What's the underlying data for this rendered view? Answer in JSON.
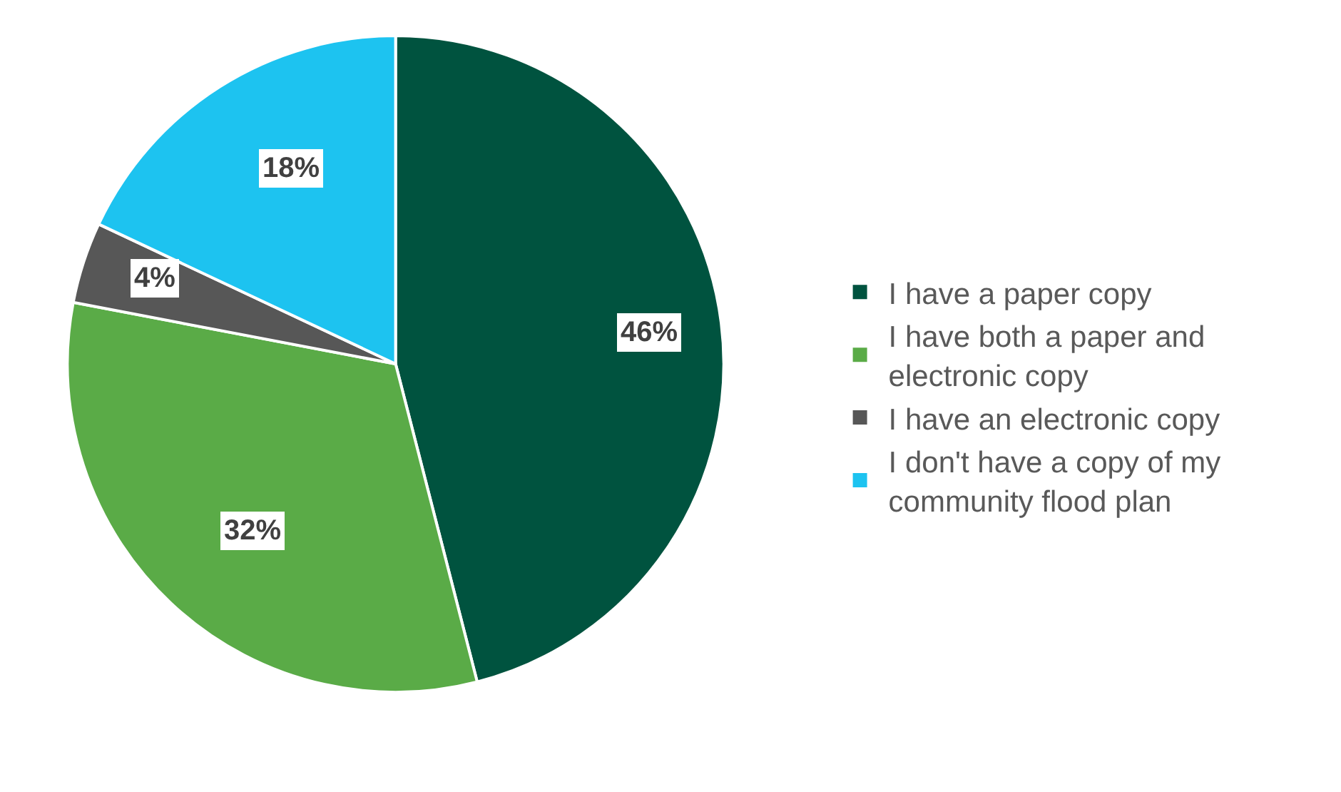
{
  "chart_data": {
    "type": "pie",
    "categories": [
      "I have a paper copy",
      "I have both a paper and electronic copy",
      "I have an electronic copy",
      "I don't have a copy of my community flood plan"
    ],
    "values": [
      46,
      32,
      4,
      18
    ],
    "value_labels": [
      "46%",
      "32%",
      "4%",
      "18%"
    ],
    "colors": [
      "#00533f",
      "#5aab47",
      "#575757",
      "#1dc3f0"
    ],
    "legend": "right"
  }
}
